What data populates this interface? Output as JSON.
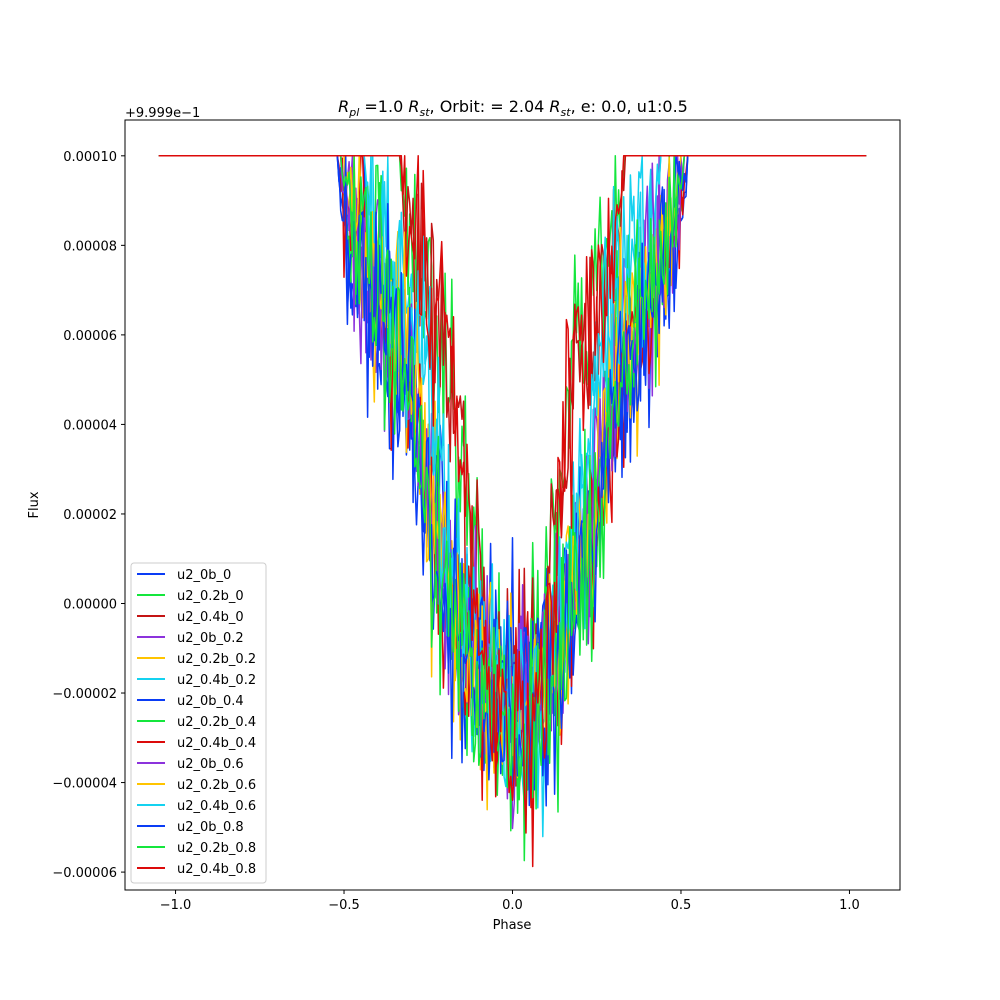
{
  "chart_data": {
    "type": "line",
    "title": {
      "r_symbol": "R",
      "r_subscript": "pl",
      "eq1": " =1.0 ",
      "st_symbol": "R",
      "st_subscript": "st",
      "orbit_text": ", Orbit: = 2.04 ",
      "st2_symbol": "R",
      "st2_subscript": "st",
      "tail": ", e: 0.0, u1:0.5"
    },
    "xlabel": "Phase",
    "ylabel": "Flux",
    "y_offset_text": "+9.999e−1",
    "xlim": [
      -1.15,
      1.15
    ],
    "ylim": [
      -6.4e-05,
      0.000108
    ],
    "x_ticks": [
      {
        "value": -1.0,
        "label": "−1.0"
      },
      {
        "value": -0.5,
        "label": "−0.5"
      },
      {
        "value": 0.0,
        "label": "0.0"
      },
      {
        "value": 0.5,
        "label": "0.5"
      },
      {
        "value": 1.0,
        "label": "1.0"
      }
    ],
    "y_ticks": [
      {
        "value": 0.0001,
        "label": "0.00010"
      },
      {
        "value": 8e-05,
        "label": "0.00008"
      },
      {
        "value": 6e-05,
        "label": "0.00006"
      },
      {
        "value": 4e-05,
        "label": "0.00004"
      },
      {
        "value": 2e-05,
        "label": "0.00002"
      },
      {
        "value": 0.0,
        "label": "0.00000"
      },
      {
        "value": -2e-05,
        "label": "−0.00002"
      },
      {
        "value": -4e-05,
        "label": "−0.00004"
      },
      {
        "value": -6e-05,
        "label": "−0.00006"
      }
    ],
    "x_range": [
      -1.05,
      1.05
    ],
    "baseline": 0.0001,
    "grid": false,
    "legend_position": "lower left",
    "series": [
      {
        "name": "u2_0b_0",
        "color": "#0a3cf5",
        "half_width": 0.52,
        "ingress": 0.185,
        "depth_min": -1.8e-05,
        "noise": 1.2e-05,
        "seed": 11
      },
      {
        "name": "u2_0.2b_0",
        "color": "#14e63c",
        "half_width": 0.335,
        "ingress": 0.15,
        "depth_min": -2.2e-05,
        "noise": 1.1e-05,
        "seed": 23
      },
      {
        "name": "u2_0.4b_0",
        "color": "#c41414",
        "half_width": 0.335,
        "ingress": 0.15,
        "depth_min": -2e-05,
        "noise": 1.1e-05,
        "seed": 37
      },
      {
        "name": "u2_0b_0.2",
        "color": "#8c32dc",
        "half_width": 0.51,
        "ingress": 0.19,
        "depth_min": -1.8e-05,
        "noise": 1.1e-05,
        "seed": 41
      },
      {
        "name": "u2_0.2b_0.2",
        "color": "#ffc400",
        "half_width": 0.5,
        "ingress": 0.19,
        "depth_min": -2e-05,
        "noise": 1.1e-05,
        "seed": 53
      },
      {
        "name": "u2_0.4b_0.2",
        "color": "#14d2f0",
        "half_width": 0.44,
        "ingress": 0.18,
        "depth_min": -2.6e-05,
        "noise": 1.2e-05,
        "seed": 67
      },
      {
        "name": "u2_0b_0.4",
        "color": "#0a3cf5",
        "half_width": 0.52,
        "ingress": 0.19,
        "depth_min": -2.2e-05,
        "noise": 1.2e-05,
        "seed": 71
      },
      {
        "name": "u2_0.2b_0.4",
        "color": "#14e63c",
        "half_width": 0.51,
        "ingress": 0.19,
        "depth_min": -2.5e-05,
        "noise": 1.2e-05,
        "seed": 83
      },
      {
        "name": "u2_0.4b_0.4",
        "color": "#dc0a0a",
        "half_width": 0.52,
        "ingress": 0.19,
        "depth_min": -2.6e-05,
        "noise": 1.2e-05,
        "seed": 97
      },
      {
        "name": "u2_0b_0.6",
        "color": "#8c32dc",
        "half_width": 0.51,
        "ingress": 0.19,
        "depth_min": -2.4e-05,
        "noise": 1.1e-05,
        "seed": 101
      },
      {
        "name": "u2_0.2b_0.6",
        "color": "#ffc400",
        "half_width": 0.5,
        "ingress": 0.19,
        "depth_min": -2.7e-05,
        "noise": 1.1e-05,
        "seed": 113
      },
      {
        "name": "u2_0.4b_0.6",
        "color": "#14d2f0",
        "half_width": 0.44,
        "ingress": 0.18,
        "depth_min": -3e-05,
        "noise": 1.2e-05,
        "seed": 127
      },
      {
        "name": "u2_0b_0.8",
        "color": "#0a3cf5",
        "half_width": 0.52,
        "ingress": 0.19,
        "depth_min": -2.8e-05,
        "noise": 1.2e-05,
        "seed": 131
      },
      {
        "name": "u2_0.2b_0.8",
        "color": "#14e63c",
        "half_width": 0.51,
        "ingress": 0.19,
        "depth_min": -3e-05,
        "noise": 1.2e-05,
        "seed": 149
      },
      {
        "name": "u2_0.4b_0.8",
        "color": "#dc0a0a",
        "half_width": 0.33,
        "ingress": 0.15,
        "depth_min": -3.2e-05,
        "noise": 1.1e-05,
        "seed": 157
      }
    ]
  }
}
